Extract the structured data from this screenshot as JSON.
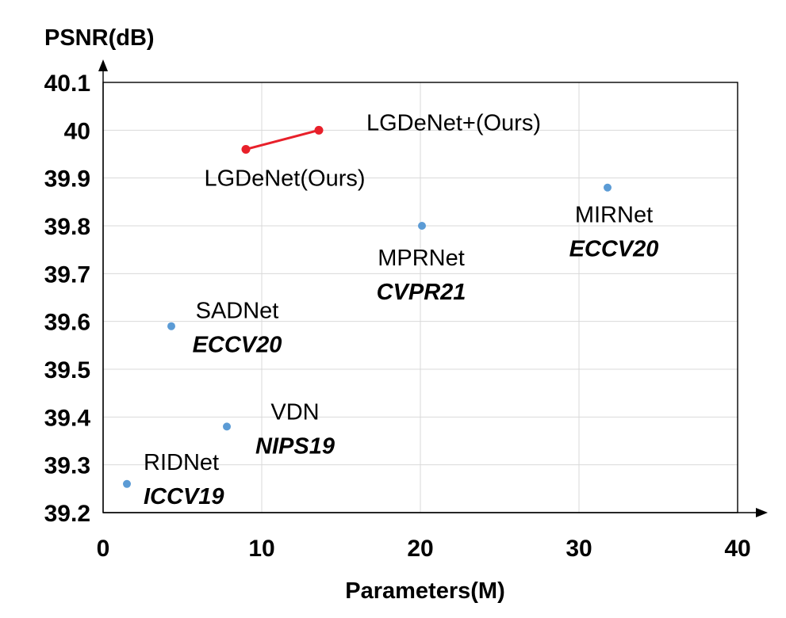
{
  "chart_data": {
    "type": "scatter",
    "xlabel": "Parameters(M)",
    "ylabel": "PSNR(dB)",
    "xlim": [
      0,
      40
    ],
    "ylim": [
      39.2,
      40.1
    ],
    "x_ticks": [
      "0",
      "10",
      "20",
      "30",
      "40"
    ],
    "y_ticks": [
      "39.2",
      "39.3",
      "39.4",
      "39.5",
      "39.6",
      "39.7",
      "39.8",
      "39.9",
      "40",
      "40.1"
    ],
    "grid": true,
    "colors": {
      "baseline": "#5b9bd5",
      "ours": "#e8202a"
    },
    "points": [
      {
        "name": "RIDNet",
        "venue": "ICCV19",
        "x": 1.5,
        "y": 39.26
      },
      {
        "name": "VDN",
        "venue": "NIPS19",
        "x": 7.8,
        "y": 39.38
      },
      {
        "name": "SADNet",
        "venue": "ECCV20",
        "x": 4.3,
        "y": 39.59
      },
      {
        "name": "MPRNet",
        "venue": "CVPR21",
        "x": 20.1,
        "y": 39.8
      },
      {
        "name": "MIRNet",
        "venue": "ECCV20",
        "x": 31.8,
        "y": 39.88
      }
    ],
    "ours": [
      {
        "name": "LGDeNet(Ours)",
        "x": 9.0,
        "y": 39.96
      },
      {
        "name": "LGDeNet+(Ours)",
        "x": 13.6,
        "y": 40.0
      }
    ]
  }
}
